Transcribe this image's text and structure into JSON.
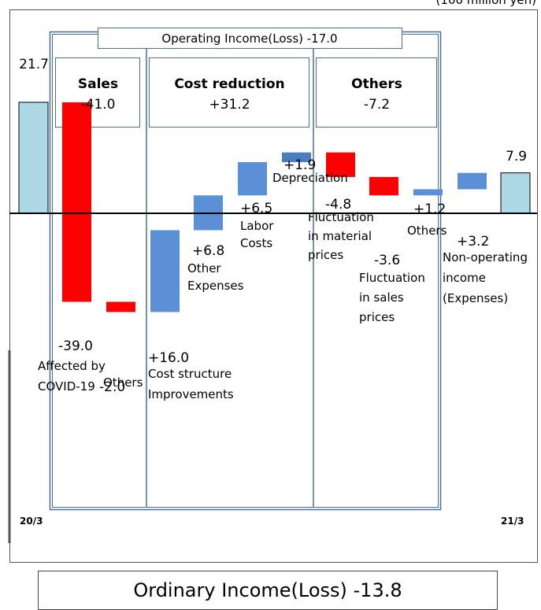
{
  "unit_note": "(100 million yen)",
  "operating_banner": "Operating Income(Loss) -17.0",
  "ordinary_banner": "Ordinary Income(Loss) -13.8",
  "sections": [
    {
      "title": "Sales",
      "value": "-41.0"
    },
    {
      "title": "Cost reduction",
      "value": "+31.2"
    },
    {
      "title": "Others",
      "value": "-7.2"
    }
  ],
  "colors": {
    "start_end": "#add8e6",
    "increase": "#5b8fd6",
    "decrease": "#ff0000",
    "depreciation": "#4a7cc0",
    "frame": "#4a6e9b"
  },
  "chart_data": {
    "type": "waterfall",
    "items": [
      {
        "kind": "total",
        "value": 21.7,
        "value_label": "21.7",
        "label": "",
        "axis_label": "20/3"
      },
      {
        "kind": "delta",
        "value": -39.0,
        "value_label": "-39.0",
        "label": "Affected by COVID-19"
      },
      {
        "kind": "delta",
        "value": -2.0,
        "value_label": "-2.0",
        "label": "Others"
      },
      {
        "kind": "delta",
        "value": 16.0,
        "value_label": "+16.0",
        "label": "Cost structure Improvements"
      },
      {
        "kind": "delta",
        "value": 6.8,
        "value_label": "+6.8",
        "label": "Other Expenses"
      },
      {
        "kind": "delta",
        "value": 6.5,
        "value_label": "+6.5",
        "label": "Labor Costs"
      },
      {
        "kind": "delta",
        "value": 1.9,
        "value_label": "+1.9",
        "label": "Depreciation"
      },
      {
        "kind": "delta",
        "value": -4.8,
        "value_label": "-4.8",
        "label": "Fluctuation in material prices"
      },
      {
        "kind": "delta",
        "value": -3.6,
        "value_label": "-3.6",
        "label": "Fluctuation in sales prices"
      },
      {
        "kind": "delta",
        "value": 1.2,
        "value_label": "+1.2",
        "label": "Others"
      },
      {
        "kind": "delta",
        "value": 3.2,
        "value_label": "+3.2",
        "label": "Non-operating income (Expenses)"
      },
      {
        "kind": "total",
        "value": 7.9,
        "value_label": "7.9",
        "label": "",
        "axis_label": "21/3"
      }
    ]
  }
}
